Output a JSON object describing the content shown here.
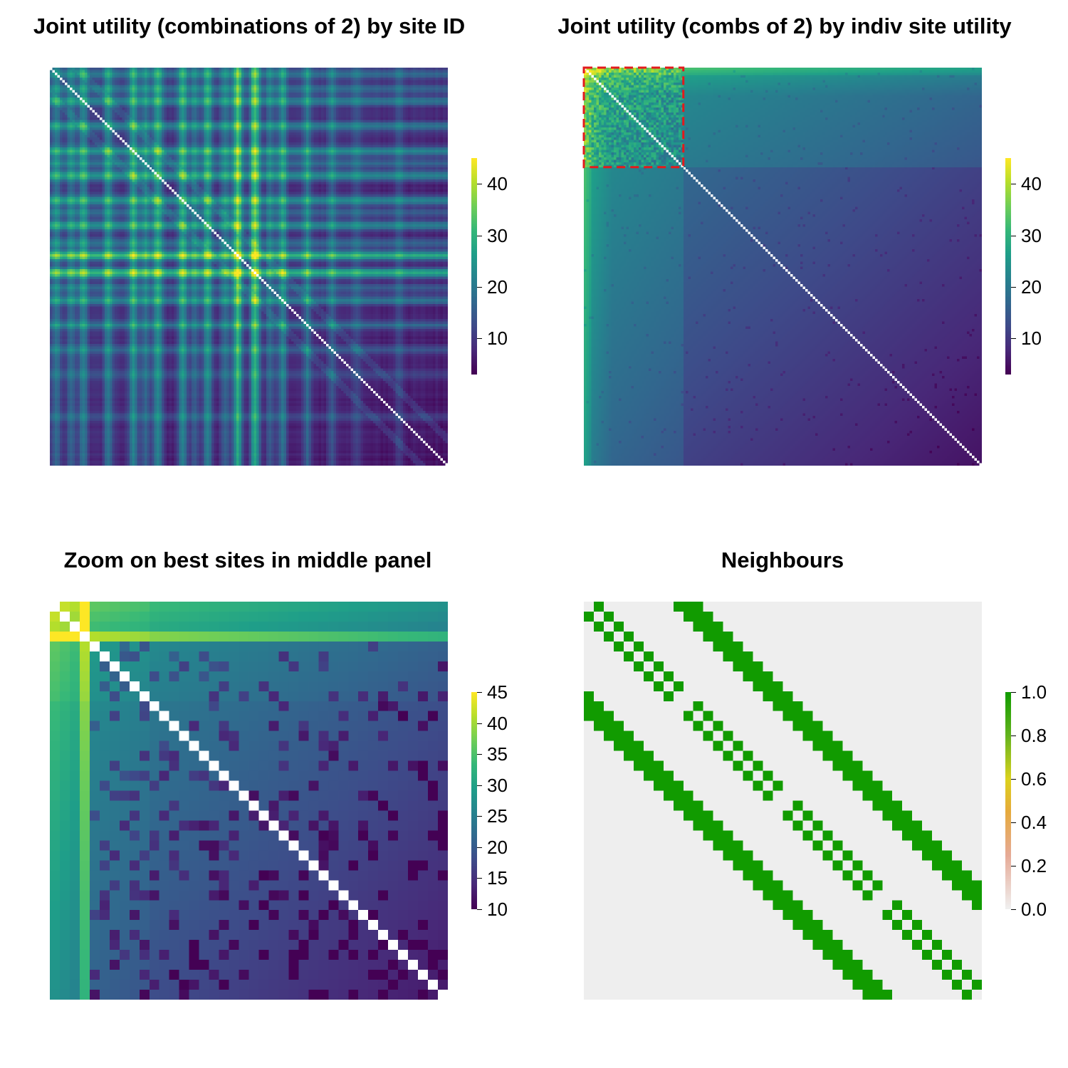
{
  "chart_data": [
    {
      "type": "heatmap",
      "title": "Joint utility (combinations of 2) by site ID",
      "xlabel": "",
      "ylabel": "",
      "n_sites": 160,
      "diagonal": "white (self-pairs excluded)",
      "colormap": "viridis",
      "colorbar": {
        "range": [
          3,
          45
        ],
        "ticks": [
          10,
          20,
          30,
          40
        ]
      },
      "description_values": {
        "min_joint_utility": 3,
        "max_joint_utility": 45
      }
    },
    {
      "type": "heatmap",
      "title": "Joint utility (combs of 2) by indiv site utility",
      "xlabel": "",
      "ylabel": "",
      "n_sites": 160,
      "diagonal": "white",
      "colormap": "viridis",
      "colorbar": {
        "range": [
          3,
          45
        ],
        "ticks": [
          10,
          20,
          30,
          40
        ]
      },
      "annotation": "red dashed box around top 40 sites (zoomed in lower-left panel)",
      "annotation_color": "#e31a1c"
    },
    {
      "type": "heatmap",
      "title": "Zoom on best sites in middle panel",
      "xlabel": "",
      "ylabel": "",
      "n_sites": 40,
      "diagonal": "white",
      "colormap": "viridis",
      "colorbar": {
        "range": [
          10,
          45
        ],
        "ticks": [
          10,
          15,
          20,
          25,
          30,
          35,
          40,
          45
        ]
      }
    },
    {
      "type": "heatmap",
      "title": "Neighbours",
      "xlabel": "",
      "ylabel": "",
      "n_sites": 40,
      "grid_cols": 4,
      "values": "binary adjacency (0 or 1)",
      "colormap": "terrain-like (grey to green)",
      "colorbar": {
        "range": [
          0,
          1
        ],
        "ticks": [
          "0.0",
          "0.2",
          "0.4",
          "0.6",
          "0.8",
          "1.0"
        ]
      },
      "colors": {
        "zero": "#eeeeee",
        "one": "#119b00"
      }
    }
  ]
}
